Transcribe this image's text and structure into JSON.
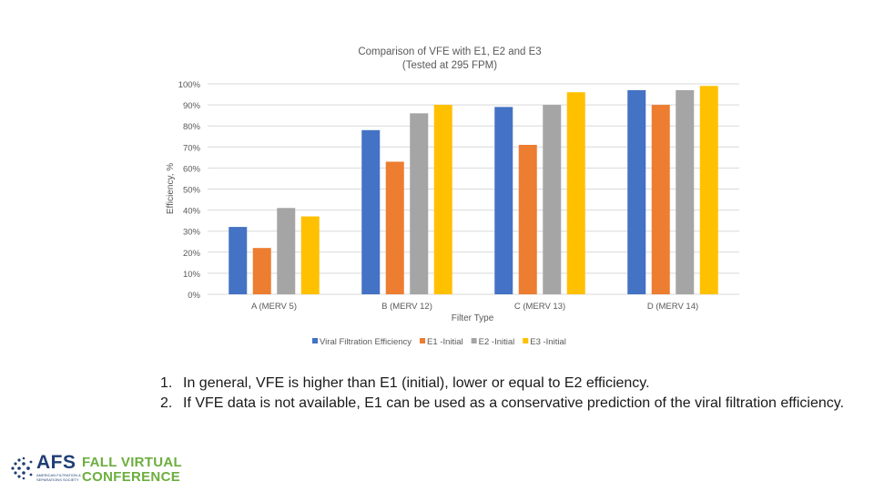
{
  "chart_data": {
    "type": "bar",
    "title": "Comparison of VFE with E1, E2 and E3",
    "subtitle": "(Tested at 295 FPM)",
    "xlabel": "Filter Type",
    "ylabel": "Efficiency, %",
    "categories": [
      "A (MERV 5)",
      "B (MERV 12)",
      "C (MERV 13)",
      "D (MERV 14)"
    ],
    "ylim": [
      0,
      100
    ],
    "yticks": [
      "0%",
      "10%",
      "20%",
      "30%",
      "40%",
      "50%",
      "60%",
      "70%",
      "80%",
      "90%",
      "100%"
    ],
    "grid": true,
    "legend_position": "bottom",
    "series": [
      {
        "name": "Viral Filtration Efficiency",
        "color": "#4472c4",
        "values": [
          32,
          78,
          89,
          97
        ]
      },
      {
        "name": "E1 -Initial",
        "color": "#ed7d31",
        "values": [
          22,
          63,
          71,
          90
        ]
      },
      {
        "name": "E2 -Initial",
        "color": "#a5a5a5",
        "values": [
          41,
          86,
          90,
          97
        ]
      },
      {
        "name": "E3 -Initial",
        "color": "#ffc000",
        "values": [
          37,
          90,
          96,
          99
        ]
      }
    ]
  },
  "notes": [
    {
      "num": "1.",
      "text": "In general, VFE is higher than E1 (initial), lower or equal to E2 efficiency."
    },
    {
      "num": "2.",
      "text": "If  VFE data is not available, E1 can be used as a conservative prediction of the viral filtration efficiency."
    }
  ],
  "logo": {
    "name": "AFS",
    "tagline": "AMERICAN FILTRATION & SEPARATIONS SOCIETY",
    "line1": "FALL VIRTUAL",
    "line2": "CONFERENCE",
    "icon": "afs-globe-icon",
    "colors": {
      "primary": "#1f3f73",
      "accent": "#6cae3e"
    }
  }
}
